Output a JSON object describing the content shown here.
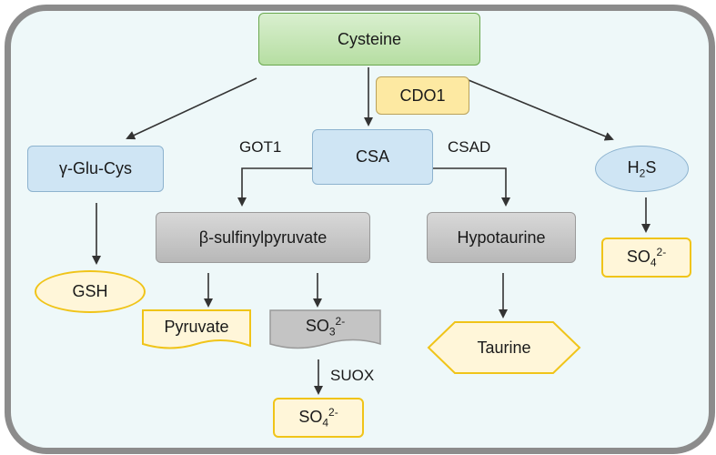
{
  "nodes": {
    "cysteine": "Cysteine",
    "cdo1": "CDO1",
    "glu_cys": "γ-Glu-Cys",
    "csa": "CSA",
    "h2s": {
      "main": "H",
      "sub": "2",
      "tail": "S"
    },
    "sulfinylpyruvate": "β-sulfinylpyruvate",
    "hypotaurine": "Hypotaurine",
    "gsh": "GSH",
    "pyruvate": "Pyruvate",
    "so3": {
      "main": "SO",
      "sub": "3",
      "sup": "2-"
    },
    "taurine": "Taurine",
    "so4_right": {
      "main": "SO",
      "sub": "4",
      "sup": "2-"
    },
    "so4_bottom": {
      "main": "SO",
      "sub": "4",
      "sup": "2-"
    }
  },
  "enzymes": {
    "got1": "GOT1",
    "csad": "CSAD",
    "suox": "SUOX"
  },
  "colors": {
    "frame": "#8c8c8c",
    "background": "#eef8f9",
    "green_node": "#b6dea2",
    "blue_node": "#cfe5f4",
    "gray_node": "#c8c8c8",
    "yellow_border": "#f0c419",
    "arrow": "#333333"
  }
}
